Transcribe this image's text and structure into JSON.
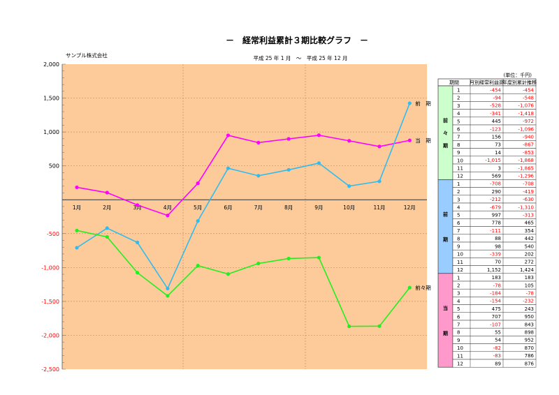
{
  "page": {
    "title": "－　経常利益累計３期比較グラフ　－",
    "company": "サンプル株式会社",
    "period": "平成 25 年 1 月　～　平成 25 年 12 月"
  },
  "colors": {
    "plot_bg": "#fdcb99",
    "current": "#ff00ff",
    "previous": "#33bbee",
    "prev_prev": "#22ee22",
    "negative": "#ff0000",
    "band_prev_prev": "#ccffcc",
    "band_previous": "#99ccff",
    "band_current": "#ff99cc"
  },
  "chart_data": {
    "type": "line",
    "categories": [
      "1月",
      "2月",
      "3月",
      "4月",
      "5月",
      "6月",
      "7月",
      "8月",
      "9月",
      "10月",
      "11月",
      "12月"
    ],
    "ylim": [
      -2500,
      2000
    ],
    "yticks": [
      2000,
      1500,
      1000,
      500,
      -500,
      -1000,
      -1500,
      -2000,
      -2500
    ],
    "ytick_labels": [
      "2,000",
      "1,500",
      "1,000",
      "500",
      "-500",
      "-1,000",
      "-1,500",
      "-2,000",
      "-2,500"
    ],
    "series": [
      {
        "key": "current",
        "name": "当　期",
        "values": [
          183,
          105,
          -78,
          -232,
          243,
          950,
          843,
          898,
          952,
          870,
          786,
          876
        ]
      },
      {
        "key": "previous",
        "name": "前　期",
        "values": [
          -708,
          -419,
          -630,
          -1310,
          -313,
          465,
          354,
          442,
          540,
          202,
          272,
          1424
        ]
      },
      {
        "key": "prev_prev",
        "name": "前々期",
        "values": [
          -454,
          -548,
          -1076,
          -1418,
          -972,
          -1096,
          -940,
          -867,
          -853,
          -1868,
          -1865,
          -1296
        ]
      }
    ]
  },
  "table": {
    "unit": "(単位：千円)",
    "headers": [
      "期間",
      "月別経常利益高",
      "年度別累計推移"
    ],
    "groups": [
      {
        "key": "prev_prev",
        "label": "前々期",
        "rows": [
          [
            "1",
            "-454",
            "-454"
          ],
          [
            "2",
            "-94",
            "-548"
          ],
          [
            "3",
            "-528",
            "-1,076"
          ],
          [
            "4",
            "-341",
            "-1,418"
          ],
          [
            "5",
            "445",
            "-972"
          ],
          [
            "6",
            "-123",
            "-1,096"
          ],
          [
            "7",
            "156",
            "-940"
          ],
          [
            "8",
            "73",
            "-867"
          ],
          [
            "9",
            "14",
            "-853"
          ],
          [
            "10",
            "-1,015",
            "-1,868"
          ],
          [
            "11",
            "3",
            "-1,865"
          ],
          [
            "12",
            "569",
            "-1,296"
          ]
        ]
      },
      {
        "key": "previous",
        "label": "前期",
        "rows": [
          [
            "1",
            "-708",
            "-708"
          ],
          [
            "2",
            "290",
            "-419"
          ],
          [
            "3",
            "-212",
            "-630"
          ],
          [
            "4",
            "-679",
            "-1,310"
          ],
          [
            "5",
            "997",
            "-313"
          ],
          [
            "6",
            "778",
            "465"
          ],
          [
            "7",
            "-111",
            "354"
          ],
          [
            "8",
            "88",
            "442"
          ],
          [
            "9",
            "98",
            "540"
          ],
          [
            "10",
            "-339",
            "202"
          ],
          [
            "11",
            "70",
            "272"
          ],
          [
            "12",
            "1,152",
            "1,424"
          ]
        ]
      },
      {
        "key": "current",
        "label": "当期",
        "rows": [
          [
            "1",
            "183",
            "183"
          ],
          [
            "2",
            "-78",
            "105"
          ],
          [
            "3",
            "-184",
            "-78"
          ],
          [
            "4",
            "-154",
            "-232"
          ],
          [
            "5",
            "475",
            "243"
          ],
          [
            "6",
            "707",
            "950"
          ],
          [
            "7",
            "-107",
            "843"
          ],
          [
            "8",
            "55",
            "898"
          ],
          [
            "9",
            "54",
            "952"
          ],
          [
            "10",
            "-82",
            "870"
          ],
          [
            "11",
            "-83",
            "786"
          ],
          [
            "12",
            "89",
            "876"
          ]
        ]
      }
    ]
  }
}
